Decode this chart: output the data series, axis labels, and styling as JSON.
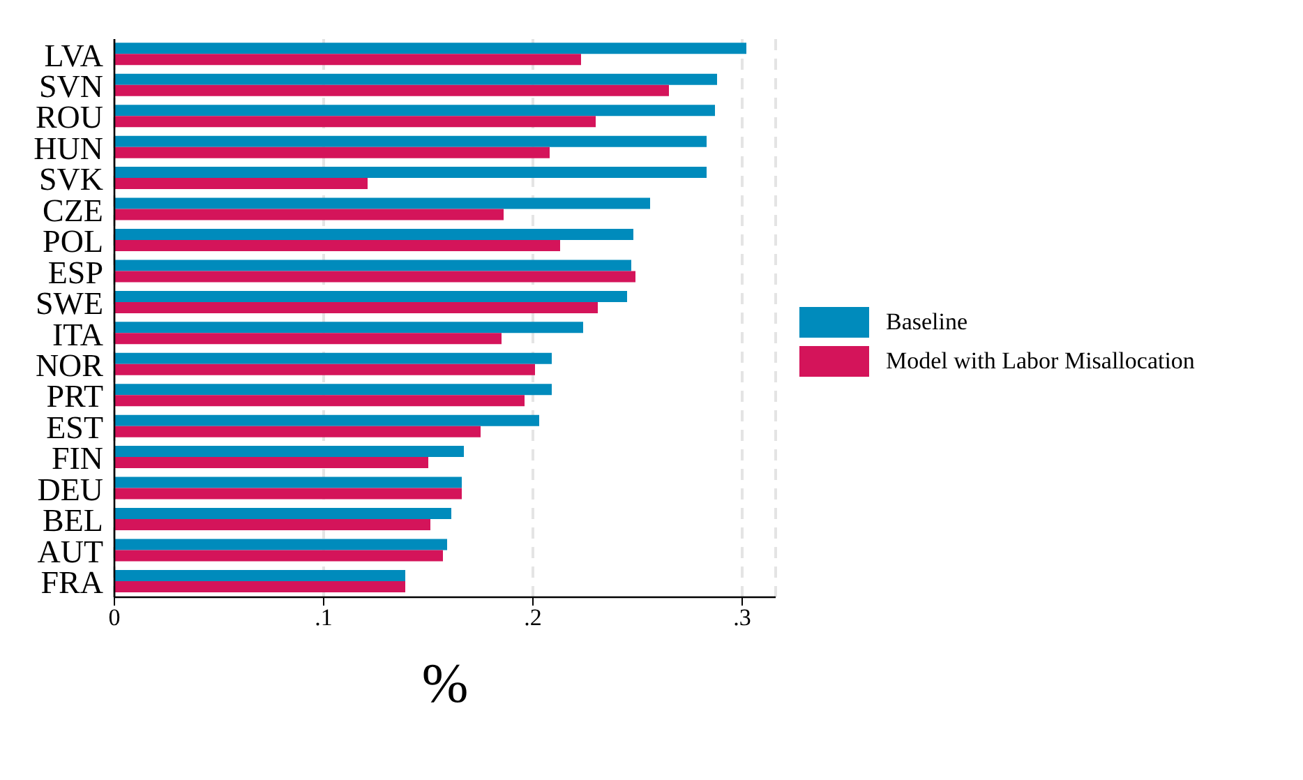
{
  "chart_data": {
    "type": "bar",
    "orientation": "horizontal",
    "xlabel": "%",
    "categories": [
      "LVA",
      "SVN",
      "ROU",
      "HUN",
      "SVK",
      "CZE",
      "POL",
      "ESP",
      "SWE",
      "ITA",
      "NOR",
      "PRT",
      "EST",
      "FIN",
      "DEU",
      "BEL",
      "AUT",
      "FRA"
    ],
    "series": [
      {
        "name": "Baseline",
        "color": "#008bbc",
        "values": [
          0.302,
          0.288,
          0.287,
          0.283,
          0.283,
          0.256,
          0.248,
          0.247,
          0.245,
          0.224,
          0.209,
          0.209,
          0.203,
          0.167,
          0.166,
          0.161,
          0.159,
          0.139
        ]
      },
      {
        "name": "Model with Labor Misallocation",
        "color": "#d4145a",
        "values": [
          0.223,
          0.265,
          0.23,
          0.208,
          0.121,
          0.186,
          0.213,
          0.249,
          0.231,
          0.185,
          0.201,
          0.196,
          0.175,
          0.15,
          0.166,
          0.151,
          0.157,
          0.139
        ]
      }
    ],
    "xlim": [
      0,
      0.316
    ],
    "xticks": [
      0,
      {
        "value": 0.1,
        "label": ".1"
      },
      {
        "value": 0.2,
        "label": ".2"
      },
      {
        "value": 0.3,
        "label": ".3"
      }
    ],
    "grid": "x",
    "legend": "right"
  }
}
